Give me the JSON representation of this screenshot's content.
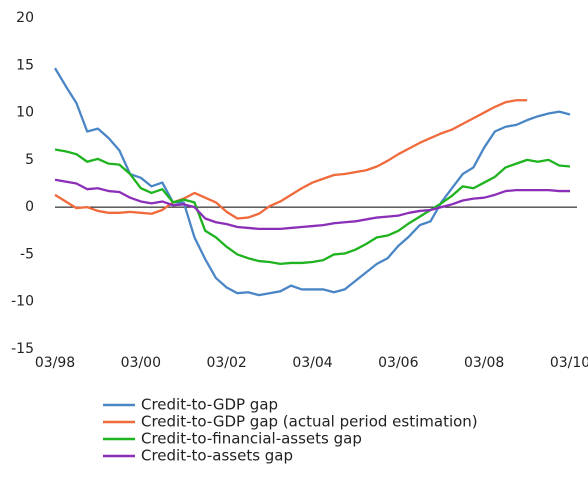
{
  "chart_data": {
    "type": "line",
    "categories": [
      "03/98",
      null,
      null,
      null,
      null,
      null,
      null,
      null,
      "03/00",
      null,
      null,
      null,
      null,
      null,
      null,
      null,
      "03/02",
      null,
      null,
      null,
      null,
      null,
      null,
      null,
      "03/04",
      null,
      null,
      null,
      null,
      null,
      null,
      null,
      "03/06",
      null,
      null,
      null,
      null,
      null,
      null,
      null,
      "03/08",
      null,
      null,
      null,
      null,
      null,
      null,
      null,
      "03/10"
    ],
    "ylim": [
      -15,
      20
    ],
    "yticks": [
      -15,
      -10,
      -5,
      0,
      5,
      10,
      15,
      20
    ],
    "series": [
      {
        "name": "Credit-to-GDP gap",
        "color": "#4a86c5",
        "values": [
          14.7,
          12.8,
          11,
          8,
          8.3,
          7.3,
          6,
          3.5,
          3.1,
          2.2,
          2.6,
          0.5,
          0.5,
          -3.2,
          -5.5,
          -7.5,
          -8.5,
          -9.1,
          -9,
          -9.3,
          -9.1,
          -8.9,
          -8.3,
          -8.7,
          -8.7,
          -8.7,
          -9,
          -8.7,
          -7.8,
          -6.9,
          -6,
          -5.4,
          -4.1,
          -3.1,
          -1.9,
          -1.5,
          0.5,
          2,
          3.5,
          4.2,
          6.3,
          8,
          8.5,
          8.7,
          9.2,
          9.6,
          9.9,
          10.1,
          9.8
        ]
      },
      {
        "name": "Credit-to-GDP gap (actual period estimation)",
        "color": "#f06a3c",
        "values": [
          1.3,
          0.6,
          -0.1,
          0,
          -0.4,
          -0.6,
          -0.6,
          -0.5,
          -0.6,
          -0.7,
          -0.3,
          0.5,
          0.9,
          1.5,
          1,
          0.5,
          -0.5,
          -1.2,
          -1.1,
          -0.7,
          0.1,
          0.6,
          1.3,
          2,
          2.6,
          3,
          3.4,
          3.5,
          3.7,
          3.9,
          4.3,
          4.9,
          5.6,
          6.2,
          6.8,
          7.3,
          7.8,
          8.2,
          8.8,
          9.4,
          10,
          10.6,
          11.1,
          11.3,
          11.3,
          null,
          null,
          null,
          null
        ]
      },
      {
        "name": "Credit-to-financial-assets gap",
        "color": "#1fb31f",
        "values": [
          6.1,
          5.9,
          5.6,
          4.8,
          5.1,
          4.6,
          4.5,
          3.5,
          2,
          1.5,
          1.9,
          0.5,
          0.8,
          0.5,
          -2.5,
          -3.2,
          -4.2,
          -5,
          -5.4,
          -5.7,
          -5.8,
          -6,
          -5.9,
          -5.9,
          -5.8,
          -5.6,
          -5,
          -4.9,
          -4.5,
          -3.9,
          -3.2,
          -3,
          -2.5,
          -1.7,
          -1,
          -0.3,
          0.4,
          1.2,
          2.2,
          2,
          2.6,
          3.2,
          4.2,
          4.6,
          5,
          4.8,
          5,
          4.4,
          4.3
        ]
      },
      {
        "name": "Credit-to-assets gap",
        "color": "#8c2fb8",
        "values": [
          2.9,
          2.7,
          2.5,
          1.9,
          2,
          1.7,
          1.6,
          1,
          0.6,
          0.4,
          0.6,
          0.2,
          0.3,
          0,
          -1.2,
          -1.6,
          -1.8,
          -2.1,
          -2.2,
          -2.3,
          -2.3,
          -2.3,
          -2.2,
          -2.1,
          -2,
          -1.9,
          -1.7,
          -1.6,
          -1.5,
          -1.3,
          -1.1,
          -1,
          -0.9,
          -0.6,
          -0.4,
          -0.3,
          0,
          0.3,
          0.7,
          0.9,
          1,
          1.3,
          1.7,
          1.8,
          1.8,
          1.8,
          1.8,
          1.7,
          1.7
        ]
      }
    ]
  }
}
